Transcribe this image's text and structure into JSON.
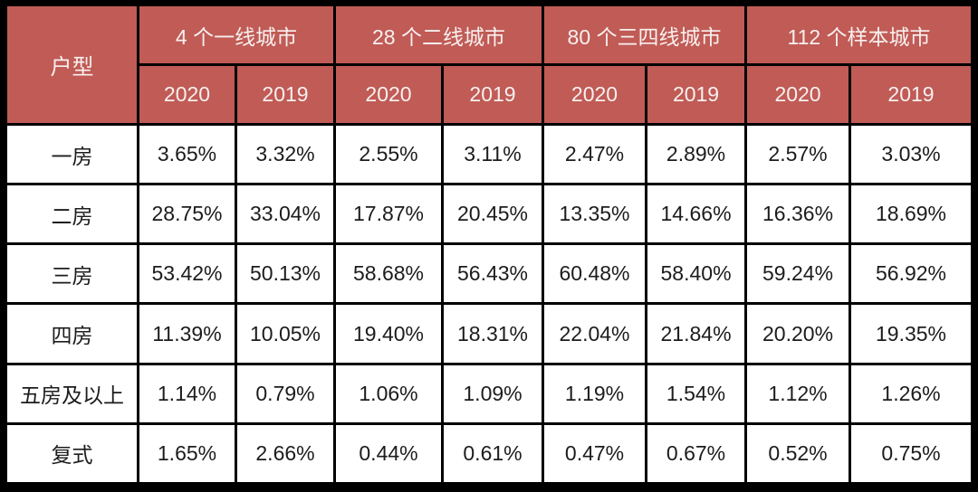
{
  "chart_data": {
    "type": "table",
    "corner_label": "户型",
    "groups": [
      {
        "label": "4 个一线城市"
      },
      {
        "label": "28 个二线城市"
      },
      {
        "label": "80 个三四线城市"
      },
      {
        "label": "112 个样本城市"
      }
    ],
    "year_headers": [
      "2020",
      "2019",
      "2020",
      "2019",
      "2020",
      "2019",
      "2020",
      "2019"
    ],
    "rows": [
      {
        "label": "一房",
        "values": [
          "3.65%",
          "3.32%",
          "2.55%",
          "3.11%",
          "2.47%",
          "2.89%",
          "2.57%",
          "3.03%"
        ]
      },
      {
        "label": "二房",
        "values": [
          "28.75%",
          "33.04%",
          "17.87%",
          "20.45%",
          "13.35%",
          "14.66%",
          "16.36%",
          "18.69%"
        ]
      },
      {
        "label": "三房",
        "values": [
          "53.42%",
          "50.13%",
          "58.68%",
          "56.43%",
          "60.48%",
          "58.40%",
          "59.24%",
          "56.92%"
        ]
      },
      {
        "label": "四房",
        "values": [
          "11.39%",
          "10.05%",
          "19.40%",
          "18.31%",
          "22.04%",
          "21.84%",
          "20.20%",
          "19.35%"
        ]
      },
      {
        "label": "五房及以上",
        "values": [
          "1.14%",
          "0.79%",
          "1.06%",
          "1.09%",
          "1.19%",
          "1.54%",
          "1.12%",
          "1.26%"
        ]
      },
      {
        "label": "复式",
        "values": [
          "1.65%",
          "2.66%",
          "0.44%",
          "0.61%",
          "0.47%",
          "0.67%",
          "0.52%",
          "0.75%"
        ]
      }
    ],
    "colors": {
      "header_bg": "#C05B56",
      "header_text": "#F8F0EE",
      "body_text": "#1C1C1C",
      "border": "#000000"
    }
  }
}
